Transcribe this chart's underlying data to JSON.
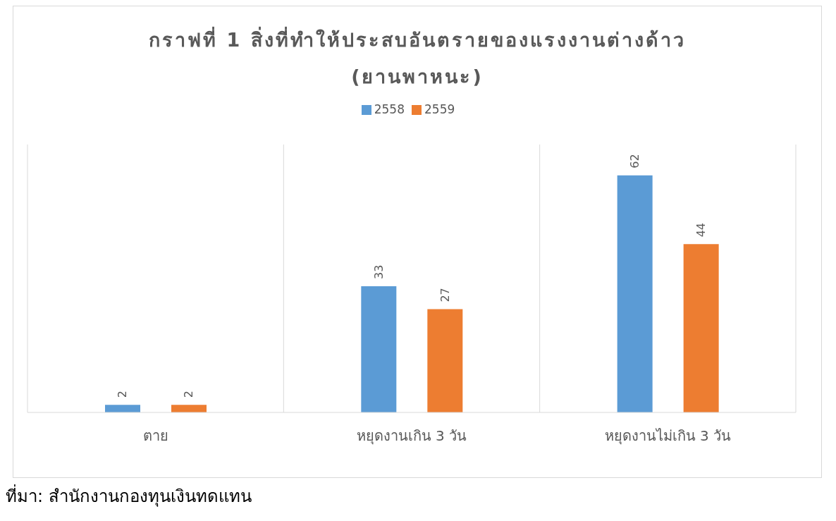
{
  "chart_data": {
    "type": "bar",
    "title": "กราฟที่ 1 สิ่งที่ทำให้ประสบอันตรายของแรงงานต่างด้าว\n(ยานพาหนะ)",
    "categories": [
      "ตาย",
      "หยุดงานเกิน 3 วัน",
      "หยุดงานไม่เกิน 3 วัน"
    ],
    "series": [
      {
        "name": "2558",
        "color": "#5b9bd5",
        "values": [
          2,
          33,
          62
        ]
      },
      {
        "name": "2559",
        "color": "#ed7d31",
        "values": [
          2,
          27,
          44
        ]
      }
    ],
    "data_labels": true,
    "legend": "top",
    "grid": "x",
    "annotations": [
      "ที่มา: สำนักงานกองทุนเงินทดแทน"
    ]
  }
}
